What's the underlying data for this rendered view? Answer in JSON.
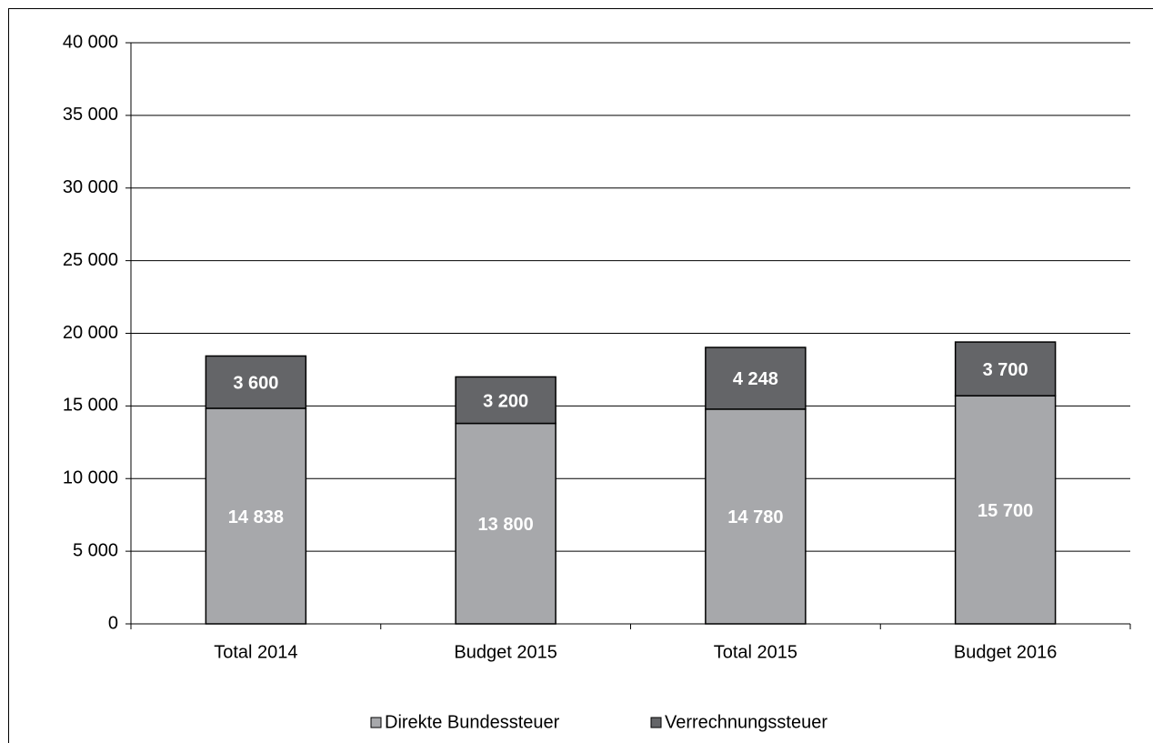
{
  "chart_data": {
    "type": "stacked_bar",
    "categories": [
      "Total 2014",
      "Budget 2015",
      "Total 2015",
      "Budget 2016"
    ],
    "series": [
      {
        "name": "Direkte Bundessteuer",
        "color": "#a7a8ab",
        "values": [
          14838,
          13800,
          14780,
          15700
        ],
        "value_labels": [
          "14 838",
          "13 800",
          "14 780",
          "15 700"
        ]
      },
      {
        "name": "Verrechnungssteuer",
        "color": "#646568",
        "values": [
          3600,
          3200,
          4248,
          3700
        ],
        "value_labels": [
          "3 600",
          "3 200",
          "4 248",
          "3 700"
        ]
      }
    ],
    "ylim": [
      0,
      40000
    ],
    "yticks": [
      0,
      {
        "value": 5000,
        "label": "5 000"
      },
      {
        "value": 10000,
        "label": "10 000"
      },
      {
        "value": 15000,
        "label": "15 000"
      },
      {
        "value": 20000,
        "label": "20 000"
      },
      {
        "value": 25000,
        "label": "25 000"
      },
      {
        "value": 30000,
        "label": "30 000"
      },
      {
        "value": 35000,
        "label": "35 000"
      },
      {
        "value": 40000,
        "label": "40 000"
      }
    ],
    "grid": true,
    "legend": "bottom"
  }
}
